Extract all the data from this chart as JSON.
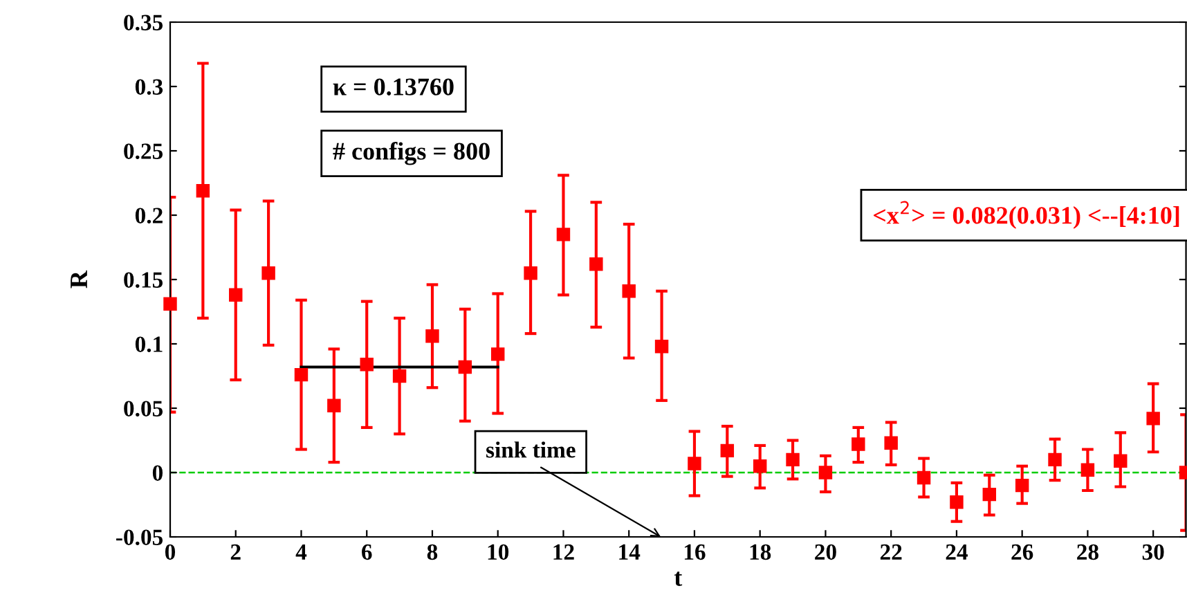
{
  "chart_data": {
    "type": "scatter",
    "xlabel": "t",
    "ylabel": "R",
    "xlim": [
      0,
      31
    ],
    "ylim": [
      -0.05,
      0.35
    ],
    "xticks": [
      0,
      2,
      4,
      6,
      8,
      10,
      12,
      14,
      16,
      18,
      20,
      22,
      24,
      26,
      28,
      30
    ],
    "yticks": [
      -0.05,
      0,
      0.05,
      0.1,
      0.15,
      0.2,
      0.25,
      0.3,
      0.35
    ],
    "grid": false,
    "marker": "square",
    "series": [
      {
        "color": "#ff0000",
        "x": [
          0,
          1,
          2,
          3,
          4,
          5,
          6,
          7,
          8,
          9,
          10,
          11,
          12,
          13,
          14,
          15,
          16,
          17,
          18,
          19,
          20,
          21,
          22,
          23,
          24,
          25,
          26,
          27,
          28,
          29,
          30,
          31
        ],
        "values": [
          0.131,
          0.219,
          0.138,
          0.155,
          0.076,
          0.052,
          0.084,
          0.075,
          0.106,
          0.082,
          0.092,
          0.155,
          0.185,
          0.162,
          0.141,
          0.098,
          0.007,
          0.017,
          0.005,
          0.01,
          0.0,
          0.022,
          0.023,
          -0.004,
          -0.023,
          -0.017,
          -0.01,
          0.01,
          0.002,
          0.009,
          0.042,
          0.0
        ],
        "errors": [
          [
            0.047,
            0.214
          ],
          [
            0.12,
            0.318
          ],
          [
            0.072,
            0.204
          ],
          [
            0.099,
            0.211
          ],
          [
            0.018,
            0.134
          ],
          [
            0.008,
            0.096
          ],
          [
            0.035,
            0.133
          ],
          [
            0.03,
            0.12
          ],
          [
            0.066,
            0.146
          ],
          [
            0.04,
            0.127
          ],
          [
            0.046,
            0.139
          ],
          [
            0.108,
            0.203
          ],
          [
            0.138,
            0.231
          ],
          [
            0.113,
            0.21
          ],
          [
            0.089,
            0.193
          ],
          [
            0.056,
            0.141
          ],
          [
            -0.018,
            0.032
          ],
          [
            -0.003,
            0.036
          ],
          [
            -0.012,
            0.021
          ],
          [
            -0.005,
            0.025
          ],
          [
            -0.015,
            0.013
          ],
          [
            0.008,
            0.035
          ],
          [
            0.006,
            0.039
          ],
          [
            -0.019,
            0.011
          ],
          [
            -0.038,
            -0.008
          ],
          [
            -0.033,
            -0.002
          ],
          [
            -0.024,
            0.005
          ],
          [
            -0.006,
            0.026
          ],
          [
            -0.014,
            0.018
          ],
          [
            -0.011,
            0.031
          ],
          [
            0.016,
            0.069
          ],
          [
            -0.045,
            0.045
          ]
        ]
      },
      {
        "type": "line",
        "color": "#000000",
        "x": [
          4,
          10
        ],
        "values": [
          0.082,
          0.082
        ],
        "line_style": "solid",
        "marker": "none"
      }
    ],
    "ref_lines": [
      {
        "axis": "y",
        "value": 0,
        "color": "#00cc00",
        "line_style": "dashed"
      }
    ],
    "annotations": [
      "κ = 0.13760",
      "# configs = 800",
      "<x$^{2}$> = 0.082(0.031) <--[4:10]",
      "sink time"
    ]
  }
}
